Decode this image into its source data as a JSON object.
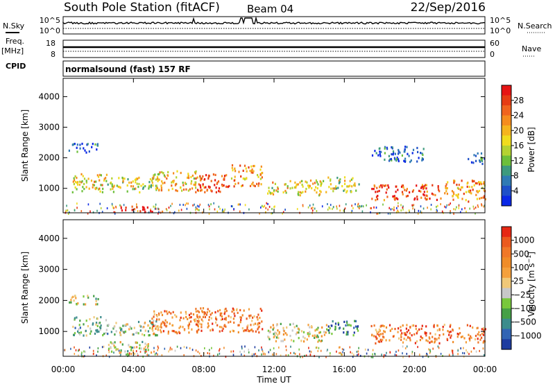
{
  "header": {
    "title": "South Pole Station (fitACF)",
    "beam": "Beam 04",
    "date": "22/Sep/2016"
  },
  "top_panels": {
    "nsky_label": "N.Sky",
    "nsky_ticks": [
      "10^5",
      "10^0"
    ],
    "nsearch_label": "N.Search",
    "nsearch_ticks": [
      "10^5",
      "10^0"
    ],
    "freq_label": "Freq.",
    "freq_unit": "[MHz]",
    "freq_ticks": [
      "18",
      "8"
    ],
    "nave_label": "Nave",
    "nave_ticks": [
      "60",
      "0"
    ],
    "cpid_label": "CPID",
    "cpid_text": "normalsound (fast) 157 RF"
  },
  "chart_data": [
    {
      "type": "heatmap",
      "name": "power-panel",
      "ylabel": "Slant Range [km]",
      "xlabel": "Time UT",
      "x_ticks": [
        "00:00",
        "04:00",
        "08:00",
        "12:00",
        "16:00",
        "20:00",
        "00:00"
      ],
      "y_ticks": [
        1000,
        2000,
        3000,
        4000
      ],
      "ylim": [
        200,
        4600
      ],
      "xlim_hours": [
        0,
        24
      ],
      "colorbar_label": "Power [dB]",
      "colorbar_ticks": [
        "28",
        "24",
        "20",
        "16",
        "12",
        "8",
        "4"
      ],
      "colorbar_colors": [
        "#0a28e6",
        "#1e50c8",
        "#2f7ab4",
        "#3d9a7e",
        "#6cbf3a",
        "#b4d232",
        "#f0dc1e",
        "#f5b41e",
        "#f58c1e",
        "#f0641e",
        "#e63c14",
        "#e61414"
      ],
      "regions": [
        {
          "t0": 0.5,
          "t1": 2.5,
          "r0": 900,
          "r1": 1500,
          "level": 0.55
        },
        {
          "t0": 2.5,
          "t1": 5.5,
          "r0": 900,
          "r1": 1400,
          "level": 0.5
        },
        {
          "t0": 5.0,
          "t1": 8.0,
          "r0": 950,
          "r1": 1600,
          "level": 0.6
        },
        {
          "t0": 7.5,
          "t1": 9.5,
          "r0": 900,
          "r1": 1500,
          "level": 0.9
        },
        {
          "t0": 9.5,
          "t1": 11.3,
          "r0": 1100,
          "r1": 1800,
          "level": 0.7
        },
        {
          "t0": 11.6,
          "t1": 15.0,
          "r0": 800,
          "r1": 1300,
          "level": 0.55
        },
        {
          "t0": 15.0,
          "t1": 16.8,
          "r0": 900,
          "r1": 1400,
          "level": 0.5
        },
        {
          "t0": 17.5,
          "t1": 21.5,
          "r0": 650,
          "r1": 1150,
          "level": 0.85
        },
        {
          "t0": 21.5,
          "t1": 24.0,
          "r0": 600,
          "r1": 1300,
          "level": 0.7
        },
        {
          "t0": 3.2,
          "t1": 5.2,
          "r0": 250,
          "r1": 450,
          "level": 0.95
        },
        {
          "t0": 0.3,
          "t1": 2.0,
          "r0": 2200,
          "r1": 2500,
          "level": 0.15
        },
        {
          "t0": 17.5,
          "t1": 20.5,
          "r0": 1900,
          "r1": 2400,
          "level": 0.15
        },
        {
          "t0": 23.0,
          "t1": 24.0,
          "r0": 1800,
          "r1": 2200,
          "level": 0.2
        }
      ]
    },
    {
      "type": "heatmap",
      "name": "velocity-panel",
      "ylabel": "Slant Range [km]",
      "xlabel": "Time UT",
      "x_ticks": [
        "00:00",
        "04:00",
        "08:00",
        "12:00",
        "16:00",
        "20:00",
        "00:00"
      ],
      "y_ticks": [
        1000,
        2000,
        3000,
        4000
      ],
      "ylim": [
        200,
        4600
      ],
      "xlim_hours": [
        0,
        24
      ],
      "colorbar_label": "Velocity [m s^-1]",
      "colorbar_ticks": [
        "1000",
        "500",
        "100",
        "25",
        "−25",
        "−100",
        "−500",
        "−1000"
      ],
      "colorbar_colors": [
        "#1e3ca0",
        "#3264b4",
        "#3c8c8c",
        "#46a046",
        "#78c83c",
        "#c8c8c8",
        "#f0c878",
        "#f5a03c",
        "#f08c28",
        "#f07828",
        "#eb5a1e",
        "#e62814"
      ],
      "regions": [
        {
          "t0": 0.5,
          "t1": 2.5,
          "r0": 900,
          "r1": 1500,
          "level": 0.35
        },
        {
          "t0": 2.5,
          "t1": 5.5,
          "r0": 900,
          "r1": 1400,
          "level": 0.4
        },
        {
          "t0": 5.0,
          "t1": 8.0,
          "r0": 950,
          "r1": 1700,
          "level": 0.75
        },
        {
          "t0": 7.5,
          "t1": 11.3,
          "r0": 1000,
          "r1": 1800,
          "level": 0.75
        },
        {
          "t0": 11.6,
          "t1": 15.0,
          "r0": 700,
          "r1": 1300,
          "level": 0.5
        },
        {
          "t0": 15.0,
          "t1": 16.8,
          "r0": 900,
          "r1": 1400,
          "level": 0.2
        },
        {
          "t0": 17.5,
          "t1": 24.0,
          "r0": 650,
          "r1": 1250,
          "level": 0.78
        },
        {
          "t0": 2.5,
          "t1": 5.0,
          "r0": 300,
          "r1": 700,
          "level": 0.45
        },
        {
          "t0": 0.3,
          "t1": 2.0,
          "r0": 1900,
          "r1": 2200,
          "level": 0.45
        }
      ]
    }
  ]
}
